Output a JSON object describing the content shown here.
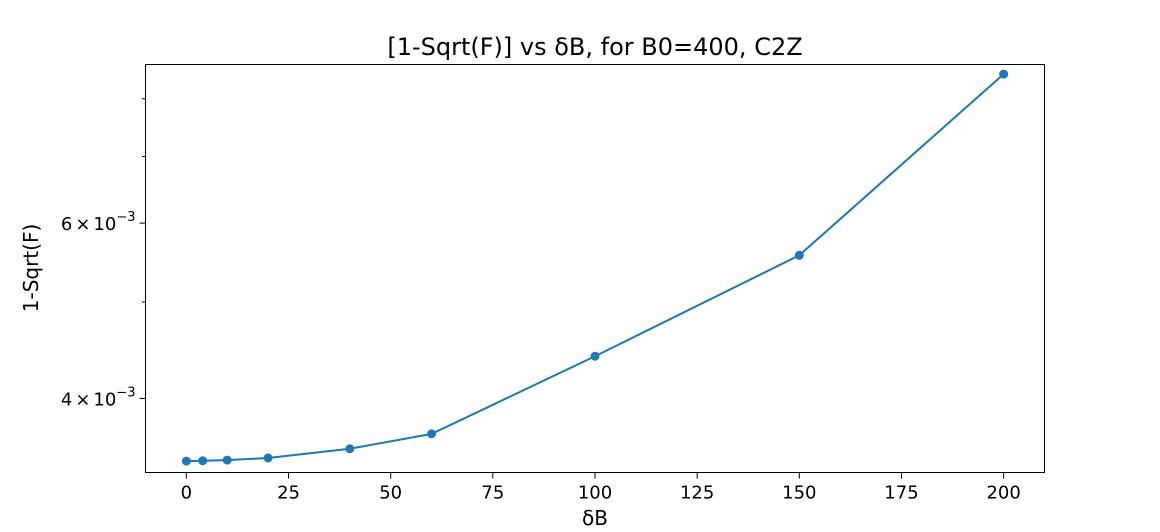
{
  "chart_data": {
    "type": "line",
    "title": "[1-Sqrt(F)] vs δB, for B0=400, C2Z",
    "xlabel": "δB",
    "ylabel": "1-Sqrt(F)",
    "xlim": [
      -10,
      210
    ],
    "ylim": [
      0.00337,
      0.00866
    ],
    "yscale": "log",
    "grid": false,
    "color": "#1f77b4",
    "series": [
      {
        "name": "1-Sqrt(F)",
        "x": [
          0,
          4,
          10,
          20,
          40,
          60,
          100,
          150,
          200
        ],
        "y": [
          0.00346,
          0.003463,
          0.003468,
          0.003485,
          0.00356,
          0.003685,
          0.00441,
          0.00557,
          0.00847
        ]
      }
    ],
    "xticks": [
      {
        "value": 0,
        "label": "0"
      },
      {
        "value": 25,
        "label": "25"
      },
      {
        "value": 50,
        "label": "50"
      },
      {
        "value": 75,
        "label": "75"
      },
      {
        "value": 100,
        "label": "100"
      },
      {
        "value": 125,
        "label": "125"
      },
      {
        "value": 150,
        "label": "150"
      },
      {
        "value": 175,
        "label": "175"
      },
      {
        "value": 200,
        "label": "200"
      }
    ],
    "yticks_major": [
      {
        "value": 0.004,
        "mantissa": "4",
        "times": "×",
        "base": "10",
        "exponent": "−3"
      },
      {
        "value": 0.006,
        "mantissa": "6",
        "times": "×",
        "base": "10",
        "exponent": "−3"
      }
    ],
    "yticks_minor": [
      0.003,
      0.005,
      0.007,
      0.008
    ]
  }
}
